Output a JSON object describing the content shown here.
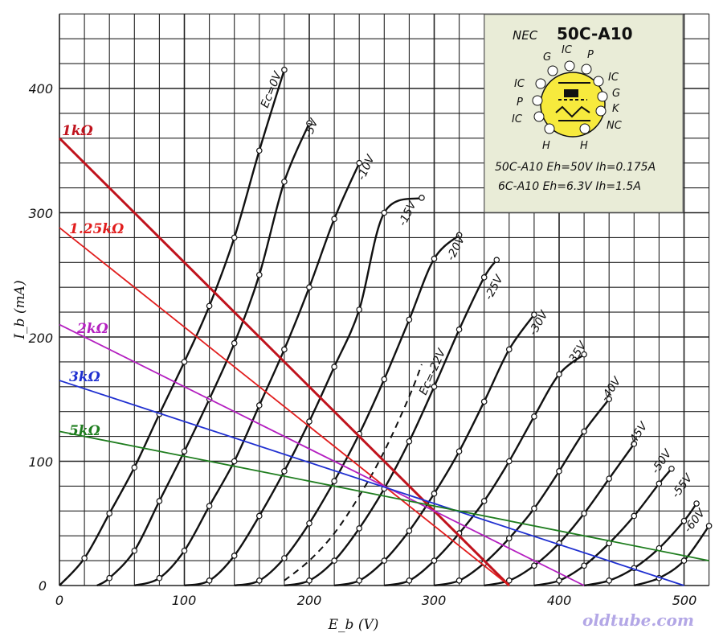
{
  "chart_data": {
    "type": "line",
    "xlabel": "E_b (V)",
    "ylabel": "I_b (mA)",
    "xlim": [
      0,
      520
    ],
    "ylim": [
      0,
      460
    ],
    "x_ticks": [
      0,
      100,
      200,
      300,
      400,
      500
    ],
    "y_ticks": [
      0,
      100,
      200,
      300,
      400
    ],
    "x_tick_labels": [
      "0",
      "100",
      "200",
      "300",
      "400",
      "500"
    ],
    "y_tick_labels": [
      "0",
      "100",
      "200",
      "300",
      "400"
    ],
    "grid": true,
    "plate_curves": [
      {
        "name": "Ec=0V",
        "points": [
          [
            0,
            0
          ],
          [
            20,
            22
          ],
          [
            40,
            58
          ],
          [
            60,
            95
          ],
          [
            80,
            138
          ],
          [
            100,
            180
          ],
          [
            120,
            225
          ],
          [
            140,
            280
          ],
          [
            160,
            350
          ],
          [
            180,
            415
          ]
        ]
      },
      {
        "name": "-5V",
        "points": [
          [
            30,
            0
          ],
          [
            40,
            6
          ],
          [
            60,
            28
          ],
          [
            80,
            68
          ],
          [
            100,
            108
          ],
          [
            120,
            150
          ],
          [
            140,
            195
          ],
          [
            160,
            250
          ],
          [
            180,
            325
          ],
          [
            200,
            372
          ]
        ]
      },
      {
        "name": "-10V",
        "points": [
          [
            60,
            0
          ],
          [
            80,
            6
          ],
          [
            100,
            28
          ],
          [
            120,
            64
          ],
          [
            140,
            100
          ],
          [
            160,
            145
          ],
          [
            180,
            190
          ],
          [
            200,
            240
          ],
          [
            220,
            295
          ],
          [
            240,
            340
          ]
        ]
      },
      {
        "name": "-15V",
        "points": [
          [
            100,
            0
          ],
          [
            120,
            4
          ],
          [
            140,
            24
          ],
          [
            160,
            56
          ],
          [
            180,
            92
          ],
          [
            200,
            132
          ],
          [
            220,
            176
          ],
          [
            240,
            222
          ],
          [
            260,
            300
          ],
          [
            290,
            312
          ]
        ]
      },
      {
        "name": "-20V",
        "points": [
          [
            140,
            0
          ],
          [
            160,
            4
          ],
          [
            180,
            22
          ],
          [
            200,
            50
          ],
          [
            220,
            84
          ],
          [
            240,
            122
          ],
          [
            260,
            166
          ],
          [
            280,
            214
          ],
          [
            300,
            263
          ],
          [
            320,
            282
          ]
        ]
      },
      {
        "name": "-25V",
        "points": [
          [
            180,
            0
          ],
          [
            200,
            4
          ],
          [
            220,
            20
          ],
          [
            240,
            46
          ],
          [
            260,
            78
          ],
          [
            280,
            116
          ],
          [
            300,
            160
          ],
          [
            320,
            206
          ],
          [
            340,
            248
          ],
          [
            350,
            262
          ]
        ]
      },
      {
        "name": "-30V",
        "points": [
          [
            220,
            0
          ],
          [
            240,
            4
          ],
          [
            260,
            20
          ],
          [
            280,
            44
          ],
          [
            300,
            74
          ],
          [
            320,
            108
          ],
          [
            340,
            148
          ],
          [
            360,
            190
          ],
          [
            380,
            218
          ]
        ]
      },
      {
        "name": "-35V",
        "points": [
          [
            260,
            0
          ],
          [
            280,
            4
          ],
          [
            300,
            20
          ],
          [
            320,
            42
          ],
          [
            340,
            68
          ],
          [
            360,
            100
          ],
          [
            380,
            136
          ],
          [
            400,
            170
          ],
          [
            420,
            186
          ]
        ]
      },
      {
        "name": "-40V",
        "points": [
          [
            300,
            0
          ],
          [
            320,
            4
          ],
          [
            340,
            18
          ],
          [
            360,
            38
          ],
          [
            380,
            62
          ],
          [
            400,
            92
          ],
          [
            420,
            124
          ],
          [
            440,
            150
          ]
        ]
      },
      {
        "name": "-45V",
        "points": [
          [
            340,
            0
          ],
          [
            360,
            4
          ],
          [
            380,
            16
          ],
          [
            400,
            34
          ],
          [
            420,
            58
          ],
          [
            440,
            86
          ],
          [
            460,
            114
          ]
        ]
      },
      {
        "name": "-50V",
        "points": [
          [
            380,
            0
          ],
          [
            400,
            4
          ],
          [
            420,
            16
          ],
          [
            440,
            34
          ],
          [
            460,
            56
          ],
          [
            480,
            82
          ],
          [
            490,
            94
          ]
        ]
      },
      {
        "name": "-55V",
        "points": [
          [
            420,
            0
          ],
          [
            440,
            4
          ],
          [
            460,
            14
          ],
          [
            480,
            30
          ],
          [
            500,
            52
          ],
          [
            510,
            66
          ]
        ]
      },
      {
        "name": "-60V",
        "points": [
          [
            460,
            0
          ],
          [
            480,
            6
          ],
          [
            500,
            20
          ],
          [
            520,
            48
          ]
        ]
      }
    ],
    "dashed_curve": {
      "name": "Ec=-22V",
      "points": [
        [
          180,
          4
        ],
        [
          200,
          20
        ],
        [
          220,
          42
        ],
        [
          240,
          72
        ],
        [
          260,
          108
        ],
        [
          280,
          152
        ],
        [
          290,
          178
        ]
      ]
    },
    "load_lines": [
      {
        "name": "1kΩ",
        "color": "#c0131d",
        "points": [
          [
            0,
            360
          ],
          [
            360,
            0
          ]
        ]
      },
      {
        "name": "1.25kΩ",
        "color": "#e11d1d",
        "points": [
          [
            0,
            288
          ],
          [
            360,
            0
          ]
        ]
      },
      {
        "name": "2kΩ",
        "color": "#b41fc0",
        "points": [
          [
            0,
            210
          ],
          [
            420,
            0
          ]
        ]
      },
      {
        "name": "3kΩ",
        "color": "#1f2fd0",
        "points": [
          [
            0,
            165
          ],
          [
            500,
            0
          ]
        ]
      },
      {
        "name": "5kΩ",
        "color": "#1e7d1e",
        "points": [
          [
            0,
            124
          ],
          [
            520,
            20
          ]
        ]
      }
    ]
  },
  "curve_labels": [
    "Ec=0V",
    "-5V",
    "-10V",
    "-15V",
    "-20V",
    "-25V",
    "-30V",
    "-35V",
    "-40V",
    "-45V",
    "-50V",
    "-55V",
    "-60V"
  ],
  "dashed_label": "Ec=-22V",
  "load_labels": [
    "1kΩ",
    "1.25kΩ",
    "2kΩ",
    "3kΩ",
    "5kΩ"
  ],
  "inset": {
    "brand": "NEC",
    "model": "50C-A10",
    "pins": {
      "p1": "H",
      "p2": "IC",
      "p3": "P",
      "p4": "IC",
      "p5": "G",
      "p6": "IC",
      "p7": "P",
      "p8": "IC",
      "p9": "G",
      "p10": "K",
      "p11": "NC",
      "p12": "H"
    },
    "spec_line_1": "50C-A10  Eh=50V  Ih=0.175A",
    "spec_line_2": "6C-A10  Eh=6.3V  Ih=1.5A"
  },
  "watermark": "oldtube.com",
  "colors": {
    "grid": "#222222",
    "curve": "#111111",
    "inset_bg": "#e9ecd7",
    "tube_yellow": "#f7ea3d"
  }
}
